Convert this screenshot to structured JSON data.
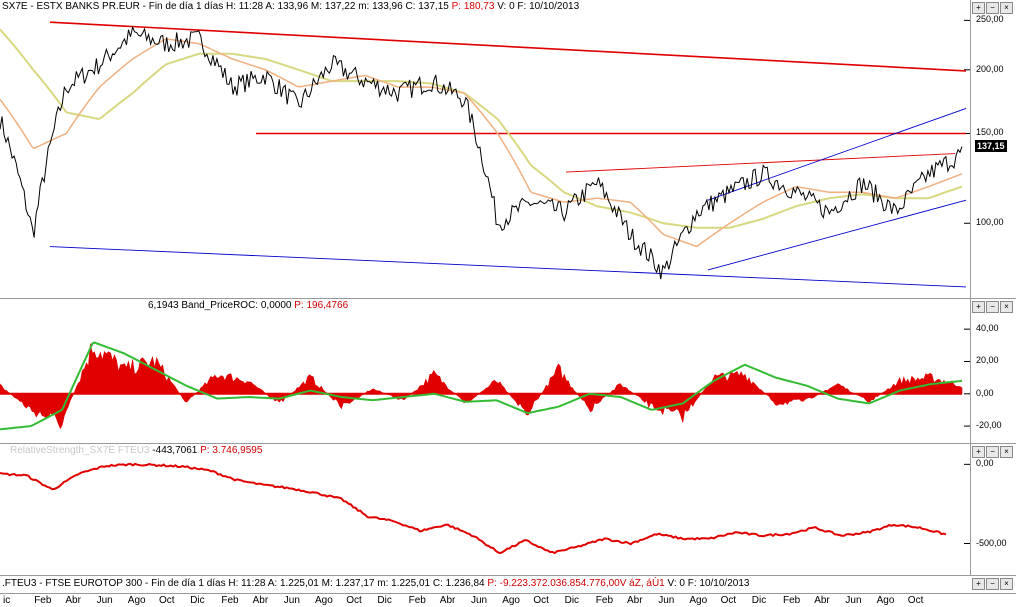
{
  "main_pane": {
    "symbol": "SX7E",
    "title": "ESTX BANKS PR.EUR - Fin de día 1 días",
    "h_label": "H:",
    "h": "11:28",
    "a_label": "A:",
    "a": "133,96",
    "m_label": "M:",
    "m": "137,22",
    "mn_label": "m:",
    "mn": "133,96",
    "c_label": "C:",
    "c": "137,15",
    "p_label": "P:",
    "p": "180,73",
    "v_label": "V:",
    "v": "0",
    "f_label": "F:",
    "f": "10/10/2013",
    "last_price": "137,15"
  },
  "roc_pane": {
    "value1": "6,1943",
    "indicator": "Band_PriceROC:",
    "value2": "0,0000",
    "p_label": "P:",
    "p": "196,4766"
  },
  "rel_pane": {
    "faint_label": "RelativeStrength_SX7E FTEU3",
    "value": "-443,7061",
    "p_label": "P:",
    "p": "3.746,9595"
  },
  "footer": {
    "symbol": ".FTEU3",
    "title": "FTSE EUROTOP 300 - Fin de día 1 días",
    "h_label": "H:",
    "h": "11:28",
    "a_label": "A:",
    "a": "1.225,01",
    "m_label": "M:",
    "m": "1.237,17",
    "mn_label": "m:",
    "mn": "1.225,01",
    "c_label": "C:",
    "c": "1.236,84",
    "p_label": "P:",
    "p": "-9.223.372.036.854.776,00V",
    "z_label": "áZ, áÙ1",
    "v_label": "V:",
    "v": "0",
    "f_label": "F:",
    "f": "10/10/2013"
  },
  "buttons": {
    "plus": "+",
    "minus": "−",
    "close": "×"
  },
  "colors": {
    "price": "#000000",
    "sma_fast": "#f0b080",
    "sma_slow": "#d8d880",
    "trend_red": "#e00000",
    "trend_blue": "#0000cc",
    "roc_fill": "#e00000",
    "roc_line": "#33bb33",
    "rel_line": "#e00000"
  },
  "chart_data": [
    {
      "type": "line",
      "pane": "price",
      "scale": "log",
      "ylim": [
        72,
        255
      ],
      "yticks": [
        100,
        150,
        200,
        250
      ],
      "ytick_labels": [
        "100,00",
        "150,00",
        "200,00",
        "250,00"
      ],
      "x": [
        "Dic",
        "Feb",
        "Abr",
        "Jun",
        "Ago",
        "Oct",
        "Dic",
        "Feb",
        "Abr",
        "Jun",
        "Ago",
        "Oct",
        "Dic",
        "Feb",
        "Abr",
        "Jun",
        "Ago",
        "Oct",
        "Dic",
        "Feb",
        "Abr",
        "Jun",
        "Ago",
        "Oct",
        "Dic",
        "Feb",
        "Abr",
        "Jun",
        "Ago",
        "Oct"
      ],
      "series": [
        {
          "key": "price",
          "values": [
            160,
            95,
            185,
            205,
            235,
            225,
            230,
            185,
            195,
            170,
            205,
            190,
            180,
            190,
            175,
            100,
            110,
            105,
            120,
            95,
            80,
            105,
            115,
            125,
            115,
            105,
            120,
            105,
            125,
            137
          ]
        },
        {
          "key": "sma_fast",
          "values": [
            175,
            140,
            150,
            185,
            210,
            230,
            225,
            210,
            200,
            185,
            190,
            195,
            185,
            185,
            180,
            150,
            115,
            110,
            112,
            110,
            95,
            90,
            100,
            110,
            118,
            115,
            115,
            112,
            118,
            125
          ]
        },
        {
          "key": "sma_slow",
          "values": [
            240,
            200,
            165,
            160,
            180,
            205,
            215,
            215,
            210,
            200,
            190,
            190,
            190,
            188,
            180,
            160,
            130,
            115,
            108,
            105,
            100,
            98,
            98,
            102,
            108,
            112,
            114,
            112,
            112,
            118
          ]
        }
      ]
    },
    {
      "type": "area",
      "pane": "roc",
      "ylim": [
        -28,
        50
      ],
      "yticks": [
        -20,
        0,
        20,
        40
      ],
      "ytick_labels": [
        "-20,00",
        "0,00",
        "20,00",
        "40,00"
      ],
      "series": [
        {
          "key": "roc",
          "values": [
            5,
            -10,
            -18,
            30,
            15,
            20,
            -5,
            12,
            8,
            -6,
            10,
            -8,
            3,
            -4,
            12,
            -6,
            8,
            -12,
            15,
            -10,
            6,
            -8,
            -14,
            10,
            12,
            -6,
            -4,
            6,
            -5,
            8,
            10,
            5
          ]
        },
        {
          "key": "roc_smooth",
          "values": [
            -22,
            -20,
            -10,
            32,
            25,
            15,
            5,
            -3,
            -2,
            -3,
            2,
            -2,
            -4,
            -2,
            0,
            -5,
            -4,
            -12,
            -8,
            0,
            -2,
            -10,
            -6,
            8,
            18,
            10,
            5,
            -3,
            -6,
            2,
            6,
            8
          ]
        }
      ]
    },
    {
      "type": "line",
      "pane": "relative",
      "ylim": [
        -680,
        40
      ],
      "yticks": [
        0,
        -500
      ],
      "ytick_labels": [
        "0,00",
        "-500,00"
      ],
      "series": [
        {
          "key": "relative",
          "values": [
            -60,
            -70,
            -160,
            -60,
            -10,
            0,
            -5,
            -15,
            -40,
            -100,
            -130,
            -150,
            -180,
            -220,
            -330,
            -360,
            -420,
            -380,
            -450,
            -560,
            -480,
            -560,
            -520,
            -470,
            -500,
            -440,
            -470,
            -470,
            -430,
            -450,
            -440,
            -400,
            -450,
            -430,
            -380,
            -400,
            -443
          ]
        }
      ]
    }
  ],
  "x_axis": {
    "ticks": [
      "ic",
      "Feb",
      "Abr",
      "Jun",
      "Ago",
      "Oct",
      "Dic",
      "Feb",
      "Abr",
      "Jun",
      "Ago",
      "Oct",
      "Dic",
      "Feb",
      "Abr",
      "Jun",
      "Ago",
      "Oct",
      "Dic",
      "Feb",
      "Abr",
      "Jun",
      "Ago",
      "Oct",
      "Dic",
      "Feb",
      "Abr",
      "Jun",
      "Ago",
      "Oct"
    ]
  }
}
